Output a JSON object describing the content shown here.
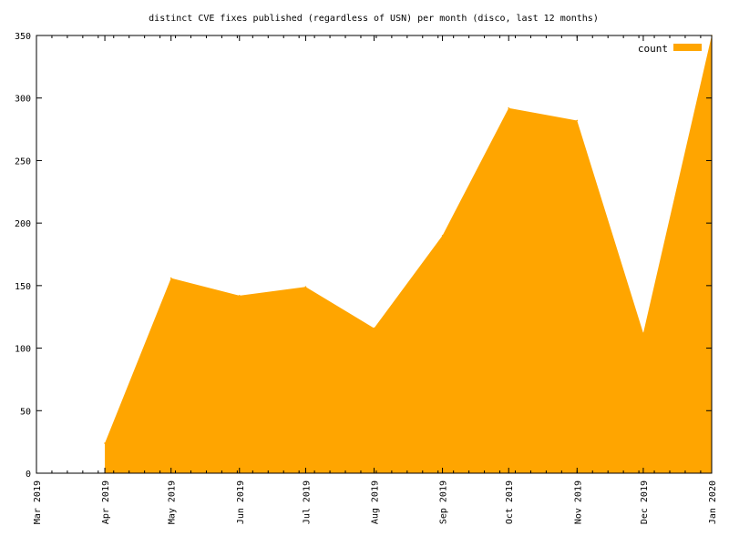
{
  "chart_data": {
    "type": "area",
    "title": "distinct CVE fixes published (regardless of USN) per month (disco, last 12 months)",
    "xlabel": "",
    "ylabel": "",
    "x": [
      "2019-04-01",
      "2019-05-01",
      "2019-06-01",
      "2019-07-01",
      "2019-08-01",
      "2019-09-01",
      "2019-10-01",
      "2019-11-01",
      "2019-12-01",
      "2020-01-01"
    ],
    "x_tick_labels": [
      "Mar 2019",
      "Apr 2019",
      "May 2019",
      "Jun 2019",
      "Jul 2019",
      "Aug 2019",
      "Sep 2019",
      "Oct 2019",
      "Nov 2019",
      "Dec 2019",
      "Jan 2020"
    ],
    "x_range": [
      "2019-03-01",
      "2020-01-01"
    ],
    "series": [
      {
        "name": "count",
        "color": "#ffa500",
        "values": [
          24,
          156,
          142,
          149,
          116,
          190,
          292,
          282,
          112,
          350
        ]
      }
    ],
    "y_ticks": [
      0,
      50,
      100,
      150,
      200,
      250,
      300,
      350
    ],
    "ylim": [
      0,
      350
    ],
    "grid": false,
    "legend_position": "top-right"
  }
}
